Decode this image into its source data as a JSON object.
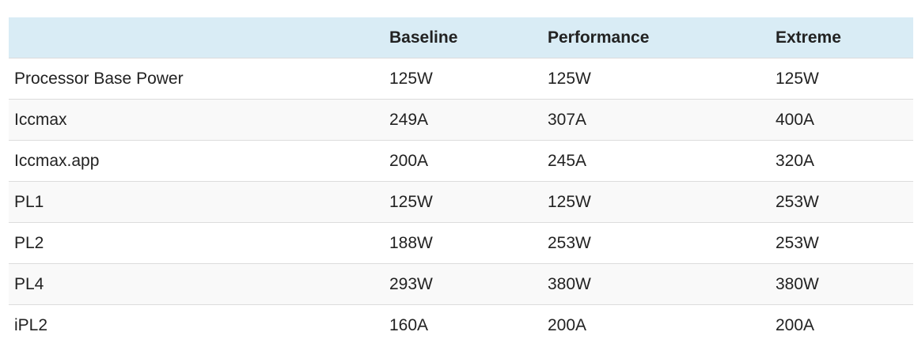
{
  "table": {
    "columns": [
      "Baseline",
      "Performance",
      "Extreme"
    ],
    "rows": [
      [
        "Processor Base Power",
        "125W",
        "125W",
        "125W"
      ],
      [
        "Iccmax",
        "249A",
        "307A",
        "400A"
      ],
      [
        "Iccmax.app",
        "200A",
        "245A",
        "320A"
      ],
      [
        "PL1",
        "125W",
        "125W",
        "253W"
      ],
      [
        "PL2",
        "188W",
        "253W",
        "253W"
      ],
      [
        "PL4",
        "293W",
        "380W",
        "380W"
      ],
      [
        "iPL2",
        "160A",
        "200A",
        "200A"
      ]
    ]
  }
}
